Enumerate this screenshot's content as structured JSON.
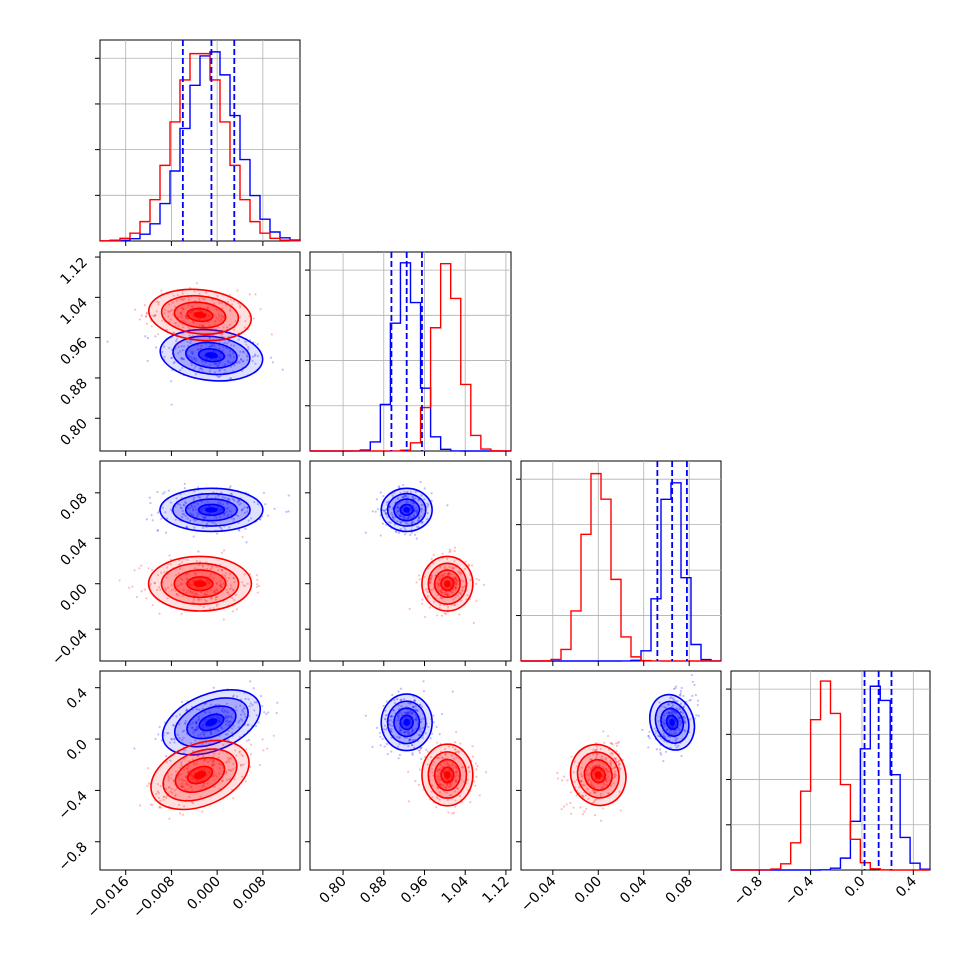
{
  "chart_data": {
    "type": "scatter",
    "kind": "corner",
    "grid": true,
    "colors": {
      "blue": "#0000ff",
      "red": "#ff0000"
    },
    "series": [
      {
        "color": "#0000ff",
        "mean": [
          -0.001,
          0.925,
          0.065,
          0.13
        ],
        "sd": [
          0.0045,
          0.025,
          0.0095,
          0.11
        ],
        "quantiles_dim0": [
          -0.006,
          -0.001,
          0.003
        ],
        "quantiles_dim1": [
          0.895,
          0.925,
          0.955
        ],
        "quantiles_dim2": [
          0.052,
          0.065,
          0.078
        ],
        "quantiles_dim3": [
          0.02,
          0.13,
          0.23
        ]
      },
      {
        "color": "#ff0000",
        "mean": [
          -0.003,
          1.005,
          0.0,
          -0.28
        ],
        "sd": [
          0.0045,
          0.025,
          0.012,
          0.12
        ]
      }
    ],
    "axes": {
      "dim0": {
        "range": [
          -0.0205,
          0.0145
        ],
        "ticks": [
          -0.016,
          -0.008,
          0.0,
          0.008
        ],
        "tick_labels": [
          "−0.016",
          "−0.008",
          "0.000",
          "0.008"
        ]
      },
      "dim1": {
        "range": [
          0.735,
          1.13
        ],
        "ticks": [
          0.8,
          0.88,
          0.96,
          1.04,
          1.12
        ],
        "tick_labels": [
          "0.80",
          "0.88",
          "0.96",
          "1.04",
          "1.12"
        ]
      },
      "dim2": {
        "range": [
          -0.068,
          0.108
        ],
        "ticks": [
          -0.04,
          0.0,
          0.04,
          0.08
        ],
        "tick_labels": [
          "−0.04",
          "0.00",
          "0.04",
          "0.08"
        ]
      },
      "dim3": {
        "range": [
          -1.02,
          0.53
        ],
        "ticks": [
          -0.8,
          -0.4,
          0.0,
          0.4
        ],
        "tick_labels": [
          "−0.8",
          "−0.4",
          "0.0",
          "0.4"
        ]
      }
    }
  }
}
